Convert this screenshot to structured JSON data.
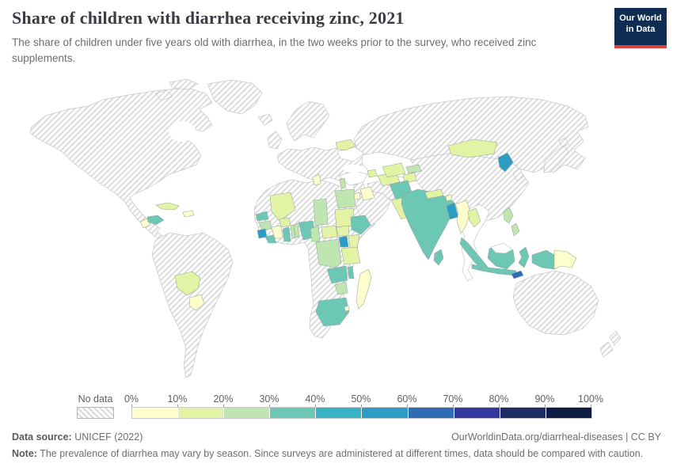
{
  "header": {
    "title": "Share of children with diarrhea receiving zinc, 2021",
    "subtitle": "The share of children under five years old with diarrhea, in the two weeks prior to the survey, who received zinc supplements.",
    "logo": {
      "line1": "Our World",
      "line2": "in Data"
    }
  },
  "legend": {
    "no_data_label": "No data",
    "tick_labels": [
      "0%",
      "10%",
      "20%",
      "30%",
      "40%",
      "50%",
      "60%",
      "70%",
      "80%",
      "90%",
      "100%"
    ]
  },
  "footer": {
    "datasource_label": "Data source:",
    "datasource_value": "UNICEF (2022)",
    "attribution": "OurWorldinData.org/diarrheal-diseases | CC BY",
    "note_label": "Note:",
    "note_text": "The prevalence of diarrhea may vary by season. Since surveys are administered at different times, data should be compared with caution."
  },
  "chart_data": {
    "type": "choropleth",
    "title": "Share of children with diarrhea receiving zinc, 2021",
    "unit": "%",
    "projection": "world",
    "legend": {
      "position": "bottom",
      "bins": [
        {
          "range": "0-10%",
          "color": "#fdfecb"
        },
        {
          "range": "10-20%",
          "color": "#e2f3a6"
        },
        {
          "range": "20-30%",
          "color": "#bfe5b0"
        },
        {
          "range": "30-40%",
          "color": "#6cc7b5"
        },
        {
          "range": "40-50%",
          "color": "#38b2c5"
        },
        {
          "range": "50-60%",
          "color": "#2b9cc4"
        },
        {
          "range": "60-70%",
          "color": "#2f6cb3"
        },
        {
          "range": "70-80%",
          "color": "#34389e"
        },
        {
          "range": "80-90%",
          "color": "#1d2c64"
        },
        {
          "range": "90-100%",
          "color": "#0e1c41"
        }
      ]
    },
    "no_data": {
      "label": "No data",
      "style": "diagonal-hatch"
    },
    "regions": {
      "haiti": {
        "name": "Haiti",
        "bin": "0-10%",
        "color": "#fdfecb"
      },
      "guatemala": {
        "name": "Guatemala",
        "bin": "0-10%",
        "color": "#fdfecb"
      },
      "paraguay": {
        "name": "Paraguay",
        "bin": "0-10%",
        "color": "#fdfecb"
      },
      "cote_divoire": {
        "name": "Cote d'Ivoire",
        "bin": "0-10%",
        "color": "#fdfecb"
      },
      "tunisia": {
        "name": "Tunisia",
        "bin": "0-10%",
        "color": "#fdfecb"
      },
      "iraq": {
        "name": "Iraq",
        "bin": "0-10%",
        "color": "#fdfecb"
      },
      "jordan": {
        "name": "Jordan",
        "bin": "0-10%",
        "color": "#fdfecb"
      },
      "madagascar": {
        "name": "Madagascar",
        "bin": "0-10%",
        "color": "#fdfecb"
      },
      "myanmar": {
        "name": "Myanmar",
        "bin": "0-10%",
        "color": "#fdfecb"
      },
      "bhutan": {
        "name": "Bhutan",
        "bin": "0-10%",
        "color": "#fdfecb"
      },
      "papua_new_guinea": {
        "name": "Papua New Guinea",
        "bin": "0-10%",
        "color": "#fdfecb"
      },
      "eswatini": {
        "name": "Eswatini",
        "bin": "0-10%",
        "color": "#fdfecb"
      },
      "cuba": {
        "name": "Cuba",
        "bin": "10-20%",
        "color": "#e2f3a6"
      },
      "bolivia": {
        "name": "Bolivia",
        "bin": "10-20%",
        "color": "#e2f3a6"
      },
      "belarus": {
        "name": "Belarus",
        "bin": "10-20%",
        "color": "#e2f3a6"
      },
      "mali": {
        "name": "Mali",
        "bin": "10-20%",
        "color": "#e2f3a6"
      },
      "burkina_faso": {
        "name": "Burkina Faso",
        "bin": "10-20%",
        "color": "#e2f3a6"
      },
      "central_african_republic": {
        "name": "Central African Republic",
        "bin": "10-20%",
        "color": "#e2f3a6"
      },
      "sudan": {
        "name": "Sudan",
        "bin": "10-20%",
        "color": "#e2f3a6"
      },
      "south_sudan": {
        "name": "South Sudan",
        "bin": "10-20%",
        "color": "#e2f3a6"
      },
      "kenya": {
        "name": "Kenya",
        "bin": "10-20%",
        "color": "#e2f3a6"
      },
      "tanzania": {
        "name": "Tanzania",
        "bin": "10-20%",
        "color": "#e2f3a6"
      },
      "turkmenistan": {
        "name": "Turkmenistan",
        "bin": "10-20%",
        "color": "#e2f3a6"
      },
      "uzbekistan": {
        "name": "Uzbekistan",
        "bin": "10-20%",
        "color": "#e2f3a6"
      },
      "tajikistan": {
        "name": "Tajikistan",
        "bin": "10-20%",
        "color": "#e2f3a6"
      },
      "azerbaijan": {
        "name": "Azerbaijan",
        "bin": "10-20%",
        "color": "#e2f3a6"
      },
      "pakistan": {
        "name": "Pakistan",
        "bin": "10-20%",
        "color": "#e2f3a6"
      },
      "nepal": {
        "name": "Nepal",
        "bin": "10-20%",
        "color": "#e2f3a6"
      },
      "mongolia": {
        "name": "Mongolia",
        "bin": "10-20%",
        "color": "#e2f3a6"
      },
      "laos": {
        "name": "Laos",
        "bin": "10-20%",
        "color": "#e2f3a6"
      },
      "albania": {
        "name": "Albania",
        "bin": "20-30%",
        "color": "#bfe5b0"
      },
      "egypt": {
        "name": "Egypt",
        "bin": "20-30%",
        "color": "#bfe5b0"
      },
      "guinea": {
        "name": "Guinea",
        "bin": "20-30%",
        "color": "#bfe5b0"
      },
      "togo": {
        "name": "Togo",
        "bin": "20-30%",
        "color": "#bfe5b0"
      },
      "benin": {
        "name": "Benin",
        "bin": "20-30%",
        "color": "#bfe5b0"
      },
      "chad": {
        "name": "Chad",
        "bin": "20-30%",
        "color": "#bfe5b0"
      },
      "cameroon": {
        "name": "Cameroon",
        "bin": "20-30%",
        "color": "#bfe5b0"
      },
      "dr_congo": {
        "name": "Democratic Republic of Congo",
        "bin": "20-30%",
        "color": "#bfe5b0"
      },
      "zimbabwe": {
        "name": "Zimbabwe",
        "bin": "20-30%",
        "color": "#bfe5b0"
      },
      "kyrgyzstan": {
        "name": "Kyrgyzstan",
        "bin": "20-30%",
        "color": "#bfe5b0"
      },
      "philippines": {
        "name": "Philippines",
        "bin": "20-30%",
        "color": "#bfe5b0"
      },
      "honduras": {
        "name": "Honduras",
        "bin": "30-40%",
        "color": "#6cc7b5"
      },
      "senegal": {
        "name": "Senegal",
        "bin": "30-40%",
        "color": "#6cc7b5"
      },
      "liberia": {
        "name": "Liberia",
        "bin": "30-40%",
        "color": "#6cc7b5"
      },
      "ghana": {
        "name": "Ghana",
        "bin": "30-40%",
        "color": "#6cc7b5"
      },
      "nigeria": {
        "name": "Nigeria",
        "bin": "30-40%",
        "color": "#6cc7b5"
      },
      "ethiopia": {
        "name": "Ethiopia",
        "bin": "30-40%",
        "color": "#6cc7b5"
      },
      "zambia": {
        "name": "Zambia",
        "bin": "30-40%",
        "color": "#6cc7b5"
      },
      "malawi": {
        "name": "Malawi",
        "bin": "30-40%",
        "color": "#6cc7b5"
      },
      "south_africa": {
        "name": "South Africa",
        "bin": "30-40%",
        "color": "#6cc7b5"
      },
      "afghanistan": {
        "name": "Afghanistan",
        "bin": "30-40%",
        "color": "#6cc7b5"
      },
      "india": {
        "name": "India",
        "bin": "30-40%",
        "color": "#6cc7b5"
      },
      "sri_lanka": {
        "name": "Sri Lanka",
        "bin": "30-40%",
        "color": "#6cc7b5"
      },
      "indonesia": {
        "name": "Indonesia",
        "bin": "30-40%",
        "color": "#6cc7b5"
      },
      "sierra_leone": {
        "name": "Sierra Leone",
        "bin": "50-60%",
        "color": "#2b9cc4"
      },
      "uganda": {
        "name": "Uganda",
        "bin": "50-60%",
        "color": "#2b9cc4"
      },
      "bangladesh": {
        "name": "Bangladesh",
        "bin": "50-60%",
        "color": "#2b9cc4"
      },
      "north_korea": {
        "name": "North Korea",
        "bin": "50-60%",
        "color": "#2b9cc4"
      },
      "timor_leste": {
        "name": "Timor-Leste",
        "bin": "60-70%",
        "color": "#2f6cb3"
      }
    }
  }
}
